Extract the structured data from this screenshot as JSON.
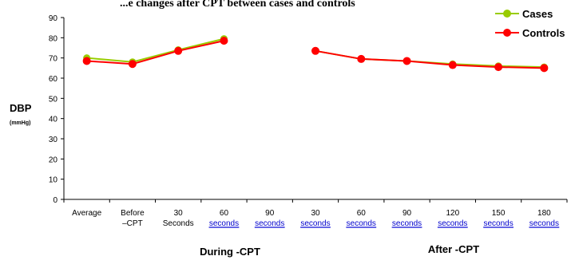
{
  "chart_data": {
    "type": "line",
    "title_fragment": "...e changes after CPT between cases and controls",
    "ylabel": "DBP",
    "ylabel_unit": "(mmHg)",
    "ylim": [
      0,
      90
    ],
    "yticks": [
      0,
      10,
      20,
      30,
      40,
      50,
      60,
      70,
      80,
      90
    ],
    "categories": [
      {
        "lines": [
          "Average"
        ],
        "link": false
      },
      {
        "lines": [
          "Before",
          "–CPT"
        ],
        "link": false
      },
      {
        "lines": [
          "30",
          "Seconds"
        ],
        "link": false
      },
      {
        "lines": [
          "60",
          "seconds"
        ],
        "link": true
      },
      {
        "lines": [
          "90",
          "seconds"
        ],
        "link": true
      },
      {
        "lines": [
          "30",
          "seconds"
        ],
        "link": true
      },
      {
        "lines": [
          "60",
          "seconds"
        ],
        "link": true
      },
      {
        "lines": [
          "90",
          "seconds"
        ],
        "link": true
      },
      {
        "lines": [
          "120",
          "seconds"
        ],
        "link": true
      },
      {
        "lines": [
          "150",
          "seconds"
        ],
        "link": true
      },
      {
        "lines": [
          "180",
          "seconds"
        ],
        "link": true
      }
    ],
    "group_labels": [
      "During -CPT",
      "After -CPT"
    ],
    "legend_position": "top-right",
    "series": [
      {
        "name": "Cases",
        "color": "#99cc00",
        "values": [
          70,
          68,
          74,
          79.5,
          null,
          73.5,
          69.5,
          68.5,
          67,
          66,
          65.5
        ]
      },
      {
        "name": "Controls",
        "color": "#ff0000",
        "values": [
          68.5,
          67,
          73.5,
          78.5,
          null,
          73.5,
          69.5,
          68.5,
          66.5,
          65.5,
          65
        ]
      }
    ]
  }
}
